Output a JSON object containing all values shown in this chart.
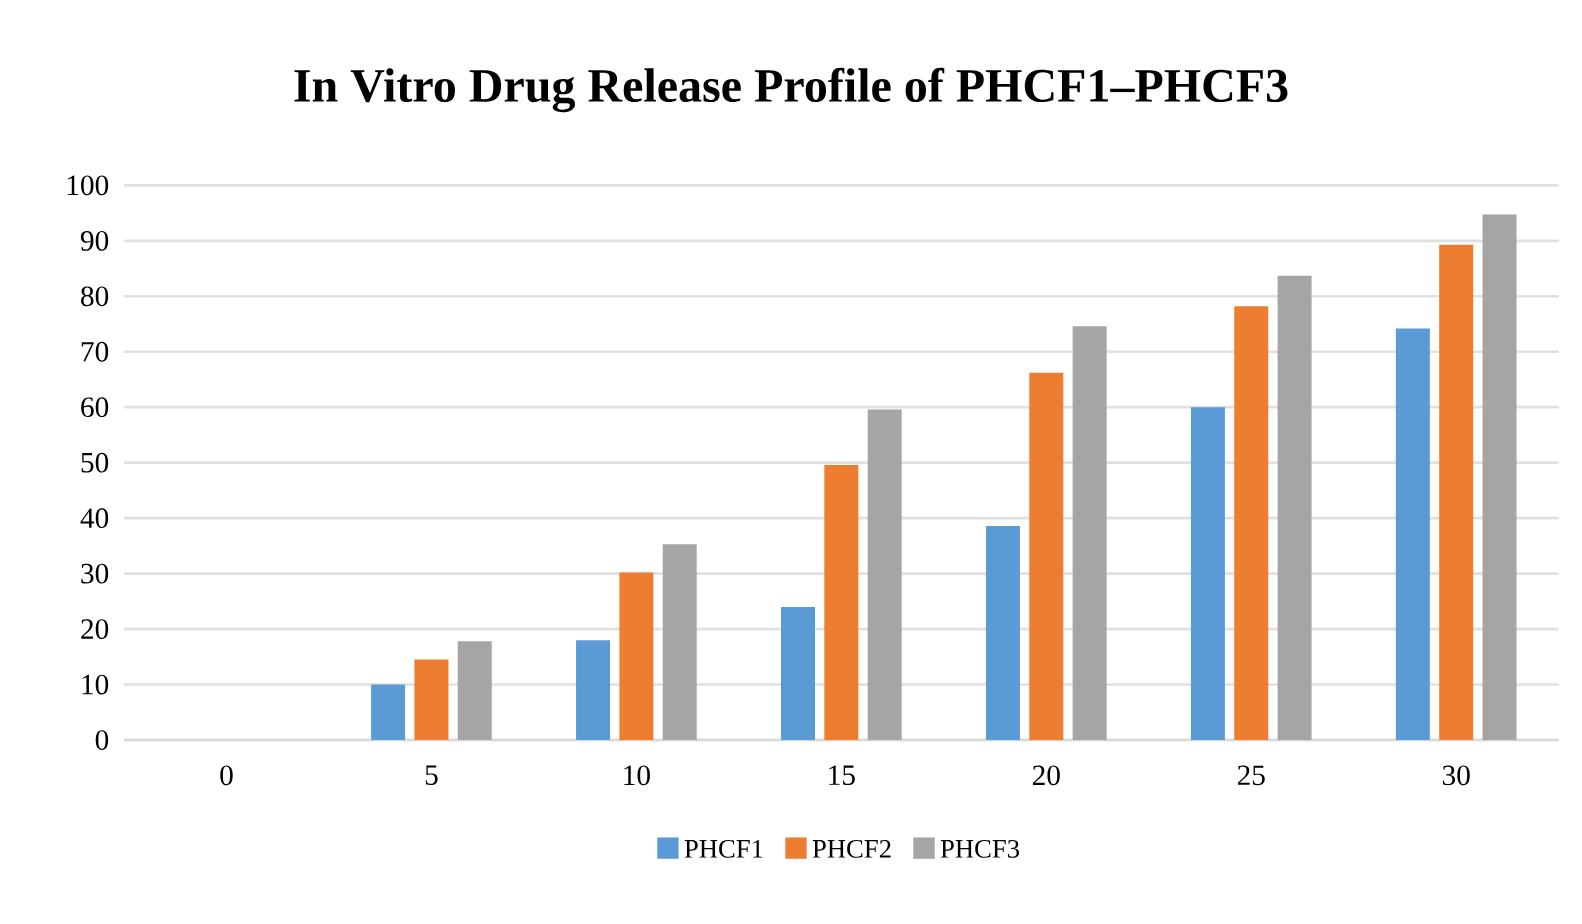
{
  "chart_data": {
    "type": "bar",
    "title": "In Vitro Drug Release Profile of PHCF1–PHCF3",
    "categories": [
      "0",
      "5",
      "10",
      "15",
      "20",
      "25",
      "30"
    ],
    "series": [
      {
        "name": "PHCF1",
        "color": "#5b9bd5",
        "values": [
          0,
          10,
          18,
          24,
          38.6,
          60,
          74.2
        ]
      },
      {
        "name": "PHCF2",
        "color": "#ed7d31",
        "values": [
          0,
          14.5,
          30.2,
          49.6,
          66.2,
          78.2,
          89.3
        ]
      },
      {
        "name": "PHCF3",
        "color": "#a5a5a5",
        "values": [
          0,
          17.8,
          35.3,
          59.6,
          74.6,
          83.7,
          94.8
        ]
      }
    ],
    "ylim": [
      0,
      100
    ],
    "yticks": [
      0,
      10,
      20,
      30,
      40,
      50,
      60,
      70,
      80,
      90,
      100
    ],
    "grid": "y",
    "legend": "bottom"
  }
}
